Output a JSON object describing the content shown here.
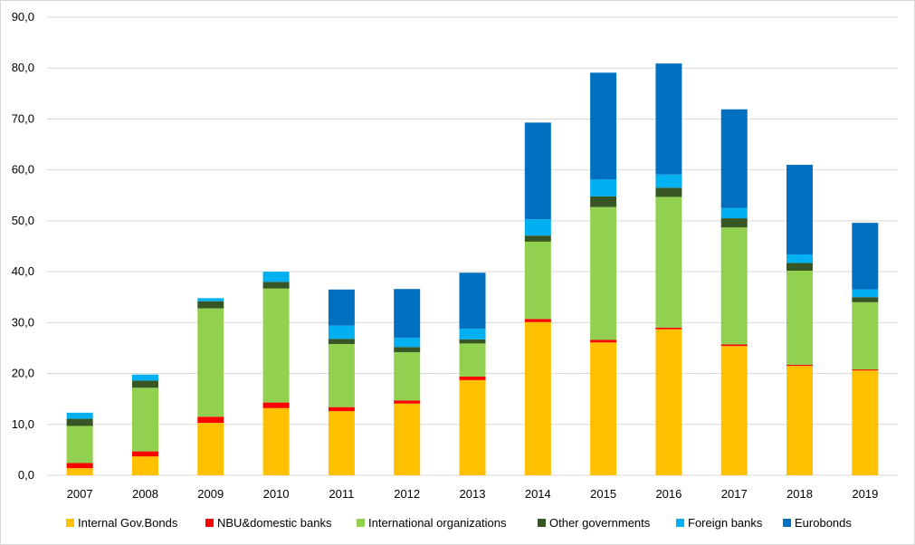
{
  "chart_data": {
    "type": "bar",
    "stacked": true,
    "categories": [
      "2007",
      "2008",
      "2009",
      "2010",
      "2011",
      "2012",
      "2013",
      "2014",
      "2015",
      "2016",
      "2017",
      "2018",
      "2019"
    ],
    "series": [
      {
        "name": "Internal Gov.Bonds",
        "color": "#FFC000",
        "values": [
          1.4,
          3.7,
          10.3,
          13.2,
          12.6,
          14.1,
          18.7,
          30.1,
          26.1,
          28.7,
          25.4,
          21.5,
          20.6
        ]
      },
      {
        "name": "NBU&domestic banks",
        "color": "#FF0000",
        "values": [
          1.0,
          1.0,
          1.2,
          1.1,
          0.8,
          0.6,
          0.7,
          0.6,
          0.5,
          0.3,
          0.3,
          0.2,
          0.2
        ]
      },
      {
        "name": "International organizations",
        "color": "#92D050",
        "values": [
          7.3,
          12.5,
          21.3,
          22.4,
          12.4,
          9.5,
          6.5,
          15.2,
          26.1,
          25.7,
          23.0,
          18.5,
          13.2
        ]
      },
      {
        "name": "Other governments",
        "color": "#375623",
        "values": [
          1.4,
          1.4,
          1.4,
          1.3,
          1.0,
          1.0,
          0.8,
          1.2,
          2.1,
          1.8,
          1.8,
          1.5,
          1.0
        ]
      },
      {
        "name": "Foreign banks",
        "color": "#00B0F0",
        "values": [
          1.2,
          1.2,
          0.6,
          2.0,
          2.6,
          1.8,
          2.1,
          3.2,
          3.3,
          2.6,
          2.0,
          1.7,
          1.5
        ]
      },
      {
        "name": "Eurobonds",
        "color": "#0070C0",
        "values": [
          0,
          0,
          0,
          0,
          7.1,
          9.6,
          11.0,
          19.0,
          21.0,
          21.8,
          19.4,
          17.6,
          13.1
        ]
      }
    ],
    "ylim": [
      0,
      90
    ],
    "yticks": [
      "0,0",
      "10,0",
      "20,0",
      "30,0",
      "40,0",
      "50,0",
      "60,0",
      "70,0",
      "80,0",
      "90,0"
    ],
    "grid": true,
    "legend_position": "bottom",
    "title": "",
    "xlabel": "",
    "ylabel": ""
  }
}
